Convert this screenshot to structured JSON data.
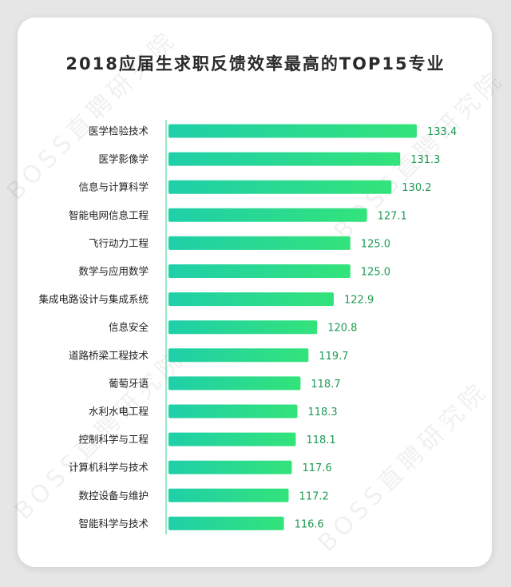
{
  "title": "2018应届生求职反馈效率最高的TOP15专业",
  "watermark": "BOSS直聘研究院",
  "colors": {
    "bar_start": "#1fcfa9",
    "bar_end": "#33e37a",
    "value_label": "#1c9a52",
    "axis_line": "#2fd58a"
  },
  "chart_data": {
    "type": "bar",
    "orientation": "horizontal",
    "title": "2018应届生求职反馈效率最高的TOP15专业",
    "categories": [
      "医学检验技术",
      "医学影像学",
      "信息与计算科学",
      "智能电网信息工程",
      "飞行动力工程",
      "数学与应用数学",
      "集成电路设计与集成系统",
      "信息安全",
      "道路桥梁工程技术",
      "葡萄牙语",
      "水利水电工程",
      "控制科学与工程",
      "计算机科学与技术",
      "数控设备与维护",
      "智能科学与技术"
    ],
    "values": [
      133.4,
      131.3,
      130.2,
      127.1,
      125.0,
      125.0,
      122.9,
      120.8,
      119.7,
      118.7,
      118.3,
      118.1,
      117.6,
      117.2,
      116.6
    ],
    "value_labels": [
      "133.4",
      "131.3",
      "130.2",
      "127.1",
      "125.0",
      "125.0",
      "122.9",
      "120.8",
      "119.7",
      "118.7",
      "118.3",
      "118.1",
      "117.6",
      "117.2",
      "116.6"
    ],
    "xlim": [
      102,
      133.4
    ],
    "grid": false,
    "legend": "none"
  }
}
